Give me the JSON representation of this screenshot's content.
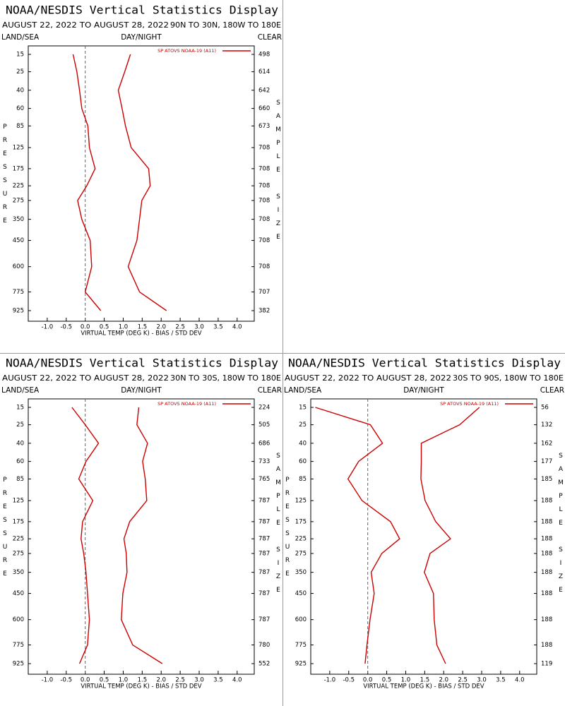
{
  "chart_data": [
    {
      "type": "line",
      "title": "NOAA/NESDIS Vertical Statistics Display",
      "date_range": "AUGUST 22, 2022 TO AUGUST 28, 2022",
      "region": "90N TO 30N, 180W TO 180E",
      "surface": "LAND/SEA",
      "time_of_day": "DAY/NIGHT",
      "sky": "CLEAR",
      "ylabel": "PRESSURE",
      "y2label": "SAMPLE SIZE",
      "xlabel": "VIRTUAL TEMP (DEG K) - BIAS / STD DEV",
      "levels": [
        15,
        25,
        40,
        60,
        85,
        125,
        175,
        225,
        275,
        350,
        450,
        600,
        775,
        925
      ],
      "sample_size": [
        498,
        614,
        642,
        660,
        673,
        708,
        708,
        708,
        708,
        708,
        708,
        708,
        707,
        382
      ],
      "xlim": [
        -1.5,
        4.45
      ],
      "xticks": [
        {
          "value": -1,
          "label": "-1.0"
        },
        -0.5,
        {
          "value": 0,
          "label": "0.0"
        },
        0.5,
        {
          "value": 1,
          "label": "1.0"
        },
        1.5,
        {
          "value": 2,
          "label": "2.0"
        },
        2.5,
        {
          "value": 3,
          "label": "3.0"
        },
        3.5,
        {
          "value": 4,
          "label": "4.0"
        }
      ],
      "reference_x": 0,
      "series": [
        {
          "name": "SP ATOVS NOAA-19 (A11)",
          "color": "#cc0000",
          "bias": [
            -0.32,
            -0.22,
            -0.15,
            -0.09,
            0.07,
            0.11,
            0.26,
            0.04,
            -0.2,
            -0.09,
            0.13,
            0.17,
            0.0,
            0.41
          ],
          "std_dev": [
            1.19,
            1.04,
            0.87,
            0.97,
            1.06,
            1.21,
            1.67,
            1.71,
            1.49,
            1.43,
            1.36,
            1.13,
            1.43,
            2.14
          ]
        }
      ]
    },
    {
      "type": "line",
      "title": "NOAA/NESDIS Vertical Statistics Display",
      "date_range": "AUGUST 22, 2022 TO AUGUST 28, 2022",
      "region": "30N TO 30S, 180W TO 180E",
      "surface": "LAND/SEA",
      "time_of_day": "DAY/NIGHT",
      "sky": "CLEAR",
      "ylabel": "PRESSURE",
      "y2label": "SAMPLE SIZE",
      "xlabel": "VIRTUAL TEMP (DEG K) - BIAS / STD DEV",
      "levels": [
        15,
        25,
        40,
        60,
        85,
        125,
        175,
        225,
        275,
        350,
        450,
        600,
        775,
        925
      ],
      "sample_size": [
        224,
        505,
        686,
        733,
        765,
        787,
        787,
        787,
        787,
        787,
        787,
        787,
        780,
        552
      ],
      "xlim": [
        -1.5,
        4.45
      ],
      "xticks": [
        {
          "value": -1,
          "label": "-1.0"
        },
        -0.5,
        {
          "value": 0,
          "label": "0.0"
        },
        0.5,
        {
          "value": 1,
          "label": "1.0"
        },
        1.5,
        {
          "value": 2,
          "label": "2.0"
        },
        2.5,
        {
          "value": 3,
          "label": "3.0"
        },
        3.5,
        {
          "value": 4,
          "label": "4.0"
        }
      ],
      "reference_x": 0,
      "series": [
        {
          "name": "SP ATOVS NOAA-19 (A11)",
          "color": "#cc0000",
          "bias": [
            -0.35,
            0.0,
            0.35,
            0.02,
            -0.17,
            0.2,
            -0.07,
            -0.11,
            -0.04,
            0.02,
            0.06,
            0.11,
            0.06,
            -0.15
          ],
          "std_dev": [
            1.41,
            1.36,
            1.64,
            1.51,
            1.58,
            1.62,
            1.17,
            1.02,
            1.08,
            1.1,
            0.99,
            0.95,
            1.25,
            2.03
          ]
        }
      ]
    },
    {
      "type": "line",
      "title": "NOAA/NESDIS Vertical Statistics Display",
      "date_range": "AUGUST 22, 2022 TO AUGUST 28, 2022",
      "region": "30S TO 90S, 180W TO 180E",
      "surface": "LAND/SEA",
      "time_of_day": "DAY/NIGHT",
      "sky": "CLEAR",
      "ylabel": "PRESSURE",
      "y2label": "SAMPLE SIZE",
      "xlabel": "VIRTUAL TEMP (DEG K) - BIAS / STD DEV",
      "levels": [
        15,
        25,
        40,
        60,
        85,
        125,
        175,
        225,
        275,
        350,
        450,
        600,
        775,
        925
      ],
      "sample_size": [
        56,
        132,
        162,
        177,
        185,
        188,
        188,
        188,
        188,
        188,
        188,
        188,
        188,
        119
      ],
      "xlim": [
        -1.5,
        4.45
      ],
      "xticks": [
        {
          "value": -1,
          "label": "-1.0"
        },
        -0.5,
        {
          "value": 0,
          "label": "0.0"
        },
        0.5,
        {
          "value": 1,
          "label": "1.0"
        },
        1.5,
        {
          "value": 2,
          "label": "2.0"
        },
        2.5,
        {
          "value": 3,
          "label": "3.0"
        },
        3.5,
        {
          "value": 4,
          "label": "4.0"
        }
      ],
      "reference_x": 0,
      "series": [
        {
          "name": "SP ATOVS NOAA-19 (A11)",
          "color": "#cc0000",
          "bias": [
            -1.38,
            0.07,
            0.39,
            -0.24,
            -0.52,
            -0.15,
            0.6,
            0.84,
            0.37,
            0.09,
            0.17,
            0.06,
            -0.02,
            -0.07
          ],
          "std_dev": [
            2.94,
            2.42,
            1.41,
            1.41,
            1.4,
            1.51,
            1.79,
            2.18,
            1.64,
            1.49,
            1.73,
            1.75,
            1.82,
            2.05
          ]
        }
      ]
    }
  ]
}
